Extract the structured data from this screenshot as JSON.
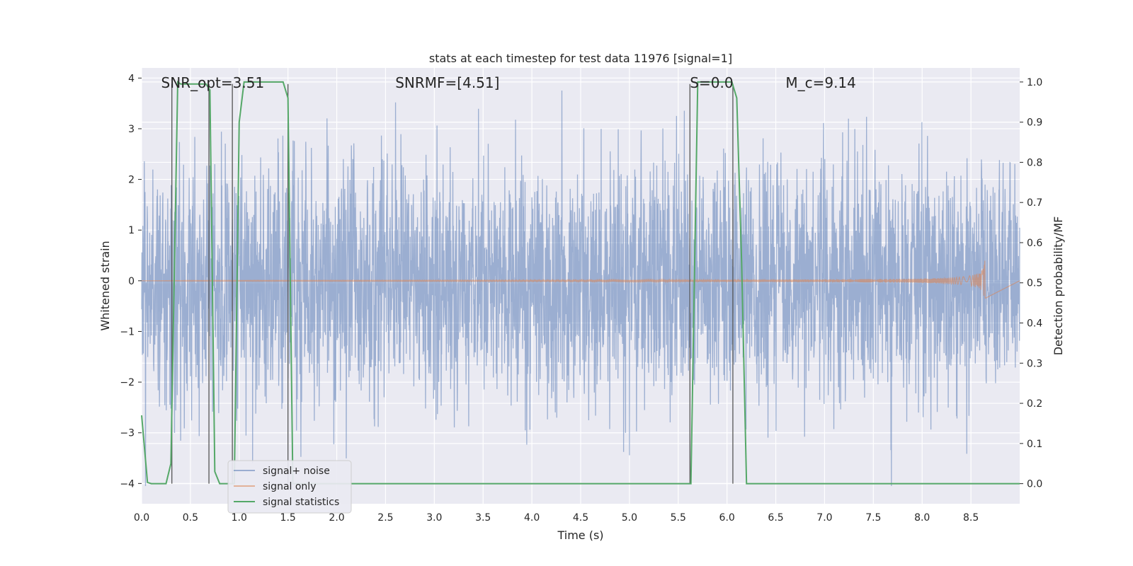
{
  "chart_data": {
    "type": "line",
    "title": "stats at each timestep for test data 11976 [signal=1]",
    "xlabel": "Time (s)",
    "ylabel": "Whitened strain",
    "y2label": "Detection probability/MF",
    "xlim": [
      0.0,
      9.0
    ],
    "ylim": [
      -4.4,
      4.2
    ],
    "y2lim": [
      -0.05,
      1.035
    ],
    "x_ticks": [
      "0.0",
      "0.5",
      "1.0",
      "1.5",
      "2.0",
      "2.5",
      "3.0",
      "3.5",
      "4.0",
      "4.5",
      "5.0",
      "5.5",
      "6.0",
      "6.5",
      "7.0",
      "7.5",
      "8.0",
      "8.5"
    ],
    "y_ticks": [
      "4",
      "3",
      "2",
      "1",
      "0",
      "−1",
      "−2",
      "−3",
      "−4"
    ],
    "y2_ticks": [
      "1.0",
      "0.9",
      "0.8",
      "0.7",
      "0.6",
      "0.5",
      "0.4",
      "0.3",
      "0.2",
      "0.1",
      "0.0"
    ],
    "grid": true,
    "legend_position": "lower-left",
    "annotations": [
      {
        "text": "SNR_opt=3.51",
        "x": 0.2
      },
      {
        "text": "SNR_MF=[4.51]",
        "x": 2.6,
        "display": "SNRMF=[4.51]"
      },
      {
        "text": "S=0.0",
        "x": 5.62
      },
      {
        "text": "M_c=9.14",
        "x": 6.6
      }
    ],
    "series": [
      {
        "name": "signal+ noise",
        "color": "#4c72b0",
        "noise_std": 1.0,
        "x_range": [
          0.0,
          9.0
        ]
      },
      {
        "name": "signal only",
        "color": "#dd8452",
        "chirp_end": 8.65,
        "peak_amplitude": 0.55
      },
      {
        "name": "signal statistics",
        "color": "#55a868",
        "axis": "right",
        "x": [
          0.0,
          0.06,
          0.1,
          0.25,
          0.3,
          0.37,
          0.4,
          0.66,
          0.7,
          0.75,
          0.8,
          0.95,
          1.0,
          1.05,
          1.1,
          1.3,
          1.45,
          1.5,
          1.55,
          5.6,
          5.63,
          5.7,
          6.05,
          6.1,
          6.15,
          6.2,
          9.0
        ],
        "y": [
          0.17,
          0.003,
          0.0,
          0.0,
          0.05,
          1.0,
          0.995,
          0.995,
          0.98,
          0.03,
          0.0,
          0.0,
          0.9,
          1.0,
          1.0,
          1.0,
          1.0,
          0.96,
          0.0,
          0.0,
          0.0,
          1.0,
          1.0,
          0.96,
          0.55,
          0.0,
          0.0
        ]
      }
    ],
    "vertical_lines": [
      0.31,
      0.69,
      0.93,
      1.5,
      5.62,
      6.06
    ]
  }
}
